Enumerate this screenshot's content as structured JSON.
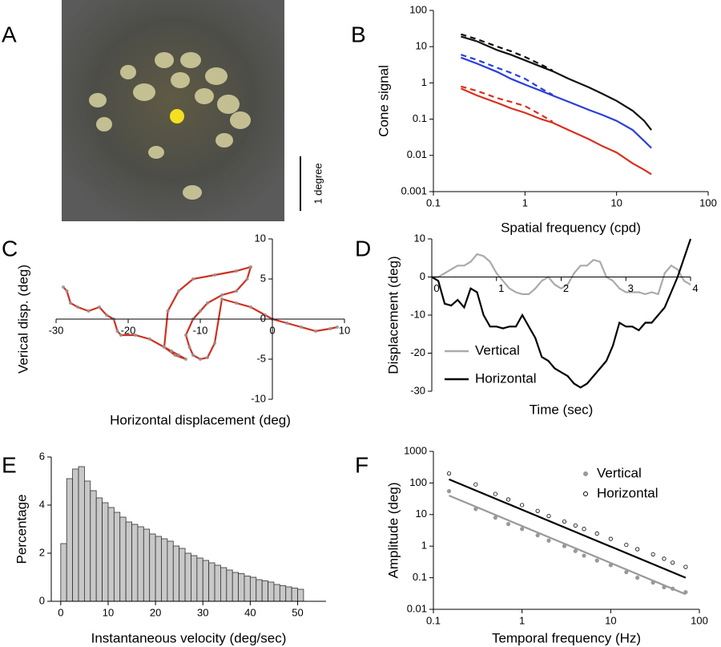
{
  "panels": [
    "A",
    "B",
    "C",
    "D",
    "E",
    "F"
  ],
  "image": {
    "scale_label": "1 degree"
  },
  "chart_data": [
    {
      "type": "line",
      "xlabel": "Spatial frequency (cpd)",
      "ylabel": "Cone signal",
      "xscale": "log",
      "yscale": "log",
      "xlim": [
        0.1,
        100
      ],
      "ylim": [
        0.001,
        100
      ],
      "xticks": [
        0.1,
        1,
        10,
        100
      ],
      "yticks": [
        0.001,
        0.01,
        0.1,
        1,
        10,
        100
      ],
      "x": [
        0.2,
        0.3,
        0.5,
        0.7,
        1,
        1.5,
        2,
        3,
        5,
        7,
        10,
        15,
        20,
        24
      ],
      "series": [
        {
          "color": "#111111",
          "dash": false,
          "values": [
            19,
            14,
            8,
            6,
            4.2,
            2.8,
            2.1,
            1.3,
            0.75,
            0.5,
            0.32,
            0.17,
            0.09,
            0.05
          ]
        },
        {
          "color": "#111111",
          "dash": true,
          "values": [
            22,
            16,
            10,
            7.5,
            5.2,
            3.2,
            2.2,
            null,
            null,
            null,
            null,
            null,
            null,
            null
          ]
        },
        {
          "color": "#2a3fd8",
          "dash": false,
          "values": [
            5,
            3.4,
            2,
            1.3,
            0.9,
            0.6,
            0.45,
            0.3,
            0.18,
            0.13,
            0.09,
            0.05,
            0.025,
            0.016
          ]
        },
        {
          "color": "#2a3fd8",
          "dash": true,
          "values": [
            6,
            4.3,
            2.6,
            1.9,
            1.3,
            0.7,
            0.47,
            null,
            null,
            null,
            null,
            null,
            null,
            null
          ]
        },
        {
          "color": "#d8301e",
          "dash": false,
          "values": [
            0.7,
            0.45,
            0.28,
            0.2,
            0.15,
            0.1,
            0.08,
            0.05,
            0.028,
            0.018,
            0.012,
            0.006,
            0.004,
            0.003
          ]
        },
        {
          "color": "#d8301e",
          "dash": true,
          "values": [
            0.8,
            0.6,
            0.38,
            0.3,
            0.23,
            0.13,
            0.085,
            null,
            null,
            null,
            null,
            null,
            null,
            null
          ]
        }
      ]
    },
    {
      "type": "line",
      "xlabel": "Horizontal  displacement (deg)",
      "ylabel": "Verical disp. (deg)",
      "xlim": [
        -30,
        10
      ],
      "ylim": [
        -10,
        10
      ],
      "xticks": [
        -30,
        -20,
        -10,
        0,
        10
      ],
      "yticks": [
        -10,
        -5,
        0,
        5,
        10
      ],
      "series": [
        {
          "color": "#d03020",
          "marker_color": "#999999",
          "dash": false,
          "x": [
            -29,
            -28.5,
            -28,
            -27,
            -25.5,
            -24,
            -23,
            -22,
            -21.5,
            -21,
            -19,
            -17,
            -15,
            -14,
            -13,
            -12,
            -13.5,
            -15,
            -14.5,
            -13,
            -11,
            -8,
            -5,
            -3,
            -3.5,
            -5,
            -7,
            -9,
            -10,
            -11,
            -12,
            -11.5,
            -11,
            -10,
            -9,
            -8,
            -7,
            -5,
            -3,
            -1,
            0,
            2,
            4,
            6,
            8,
            9
          ],
          "values": [
            4,
            3.5,
            2,
            1.5,
            1,
            1.5,
            0.5,
            0,
            -1.5,
            -2,
            -2,
            -2.5,
            -3.5,
            -4,
            -4.5,
            -5,
            -4.5,
            -3.5,
            1,
            3.5,
            5,
            5.5,
            6,
            6.5,
            5,
            3.5,
            3,
            2,
            1,
            0,
            -2,
            -3.5,
            -4.5,
            -5,
            -4.8,
            -3,
            2.5,
            2,
            1.5,
            0.5,
            0,
            -0.5,
            -1,
            -1.5,
            -1.2,
            -1
          ]
        }
      ]
    },
    {
      "type": "line",
      "xlabel": "Time (sec)",
      "ylabel": "Displacement (deg)",
      "xlim": [
        0,
        4
      ],
      "ylim": [
        -30,
        10
      ],
      "xticks": [
        0,
        1,
        2,
        3,
        4
      ],
      "yticks": [
        -30,
        -20,
        -10,
        0,
        10
      ],
      "legend": "lower left",
      "x": [
        0,
        0.1,
        0.2,
        0.3,
        0.4,
        0.5,
        0.6,
        0.7,
        0.8,
        0.9,
        1,
        1.1,
        1.2,
        1.3,
        1.4,
        1.5,
        1.6,
        1.7,
        1.8,
        1.9,
        2,
        2.1,
        2.2,
        2.3,
        2.4,
        2.5,
        2.6,
        2.7,
        2.8,
        2.9,
        3,
        3.1,
        3.2,
        3.3,
        3.4,
        3.5,
        3.6,
        3.7,
        3.8,
        3.9,
        4
      ],
      "series": [
        {
          "name": "Vertical",
          "color": "#aaaaaa",
          "dash": false,
          "values": [
            0,
            0,
            1,
            2,
            3,
            3,
            4,
            6,
            5.5,
            4,
            1,
            -1,
            -3,
            -4,
            -4.5,
            -4.5,
            -3,
            -1,
            0,
            -2,
            -3,
            -2,
            1,
            3,
            3,
            4.5,
            4,
            0,
            -1,
            -3,
            -4,
            -4,
            -4,
            -4.5,
            -4,
            -4.5,
            1,
            3,
            2,
            -1,
            -2
          ]
        },
        {
          "name": "Horizontal",
          "color": "#000000",
          "dash": false,
          "values": [
            0,
            -1,
            -7,
            -7.5,
            -6,
            -8,
            -3,
            -4,
            -10,
            -13,
            -13,
            -13.5,
            -13,
            -13,
            -10,
            -13,
            -16,
            -21,
            -22,
            -24,
            -25,
            -26,
            -28,
            -29,
            -28,
            -26,
            -24,
            -22,
            -18,
            -12,
            -13,
            -13,
            -14,
            -12,
            -12,
            -10,
            -8,
            -4,
            0,
            5,
            10
          ]
        }
      ]
    },
    {
      "type": "histogram",
      "xlabel": "Instantaneous velocity (deg/sec)",
      "ylabel": "Percentage",
      "xlim": [
        -2,
        56
      ],
      "ylim": [
        0,
        6
      ],
      "xticks": [
        0,
        10,
        20,
        30,
        40,
        50
      ],
      "yticks": [
        0,
        2,
        4,
        6
      ],
      "color": "#c8c8c8",
      "bins": [
        0,
        1.25,
        2.5,
        3.75,
        5,
        6.25,
        7.5,
        8.75,
        10,
        11.25,
        12.5,
        13.75,
        15,
        16.25,
        17.5,
        18.75,
        20,
        21.25,
        22.5,
        23.75,
        25,
        26.25,
        27.5,
        28.75,
        30,
        31.25,
        32.5,
        33.75,
        35,
        36.25,
        37.5,
        38.75,
        40,
        41.25,
        42.5,
        43.75,
        45,
        46.25,
        47.5,
        48.75,
        50,
        51.25
      ],
      "values": [
        2.4,
        5.1,
        5.5,
        5.6,
        5.0,
        4.6,
        4.3,
        4.1,
        3.9,
        3.7,
        3.5,
        3.3,
        3.2,
        3.1,
        3.0,
        2.8,
        2.7,
        2.6,
        2.5,
        2.3,
        2.2,
        2.0,
        1.9,
        1.8,
        1.7,
        1.6,
        1.5,
        1.4,
        1.3,
        1.2,
        1.15,
        1.05,
        1.0,
        0.9,
        0.85,
        0.8,
        0.7,
        0.65,
        0.6,
        0.55,
        0.5
      ]
    },
    {
      "type": "scatter",
      "xlabel": "Temporal frequency (Hz)",
      "ylabel": "Amplitude (deg)",
      "xscale": "log",
      "yscale": "log",
      "xlim": [
        0.1,
        100
      ],
      "ylim": [
        0.01,
        1000
      ],
      "xticks": [
        0.1,
        1,
        10,
        100
      ],
      "yticks": [
        0.01,
        0.1,
        1,
        10,
        100,
        1000
      ],
      "legend": "upper right",
      "series": [
        {
          "name": "Vertical",
          "mode": "markers",
          "color": "#999999",
          "x": [
            0.15,
            0.3,
            0.5,
            0.7,
            1,
            1.5,
            2,
            3,
            4,
            5,
            7,
            10,
            15,
            20,
            30,
            40,
            50,
            70
          ],
          "values": [
            55,
            15,
            8,
            5,
            3.5,
            2.2,
            1.5,
            1,
            0.7,
            0.5,
            0.35,
            0.25,
            0.15,
            0.1,
            0.07,
            0.05,
            0.045,
            0.035
          ]
        },
        {
          "name": "Horizontal",
          "mode": "markers",
          "color": "#000000",
          "x": [
            0.15,
            0.3,
            0.5,
            0.7,
            1,
            1.5,
            2,
            3,
            4,
            5,
            7,
            10,
            15,
            20,
            30,
            40,
            50,
            70
          ],
          "values": [
            200,
            90,
            45,
            30,
            20,
            13,
            9,
            6,
            4.5,
            3.5,
            2.5,
            1.7,
            1.1,
            0.8,
            0.55,
            0.4,
            0.3,
            0.22
          ]
        },
        {
          "mode": "line",
          "color": "#000000",
          "x": [
            0.15,
            70
          ],
          "values": [
            130,
            0.1
          ]
        },
        {
          "mode": "line",
          "color": "#999999",
          "x": [
            0.15,
            70
          ],
          "values": [
            40,
            0.03
          ]
        }
      ]
    }
  ]
}
